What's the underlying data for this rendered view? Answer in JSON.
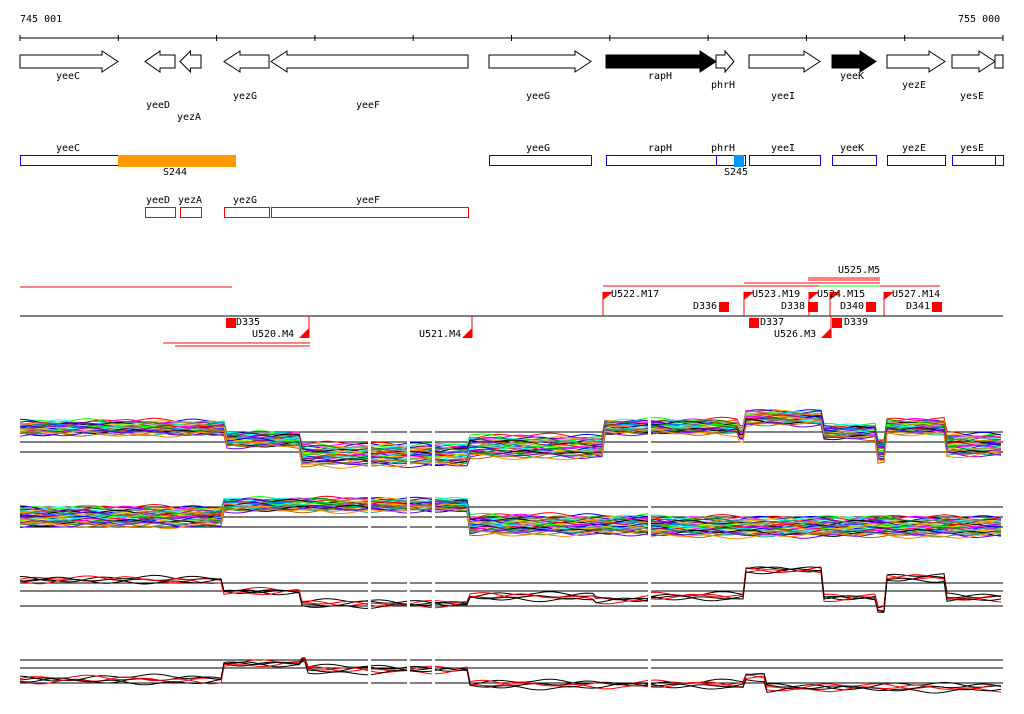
{
  "ruler": {
    "start": "745 001",
    "end": "755 000"
  },
  "genes": [
    {
      "name": "yeeC",
      "strand": "+"
    },
    {
      "name": "yeeD",
      "strand": "-"
    },
    {
      "name": "yezA",
      "strand": "-"
    },
    {
      "name": "yezG",
      "strand": "-"
    },
    {
      "name": "yeeF",
      "strand": "-"
    },
    {
      "name": "yeeG",
      "strand": "+"
    },
    {
      "name": "rapH",
      "strand": "+"
    },
    {
      "name": "phrH",
      "strand": "+"
    },
    {
      "name": "yeeI",
      "strand": "+"
    },
    {
      "name": "yeeK",
      "strand": "+"
    },
    {
      "name": "yezE",
      "strand": "+"
    },
    {
      "name": "yesE",
      "strand": "+"
    }
  ],
  "operons": {
    "labels": [
      "yeeC",
      "yeeG",
      "rapH",
      "phrH",
      "yeeI",
      "yeeK",
      "yezE",
      "yesE"
    ],
    "segments": [
      "S244",
      "S245"
    ],
    "segment_colors": {
      "S244": "#ff9900",
      "S245": "#0099ff"
    }
  },
  "red_operons": [
    "yeeD",
    "yezA",
    "yezG",
    "yeeF"
  ],
  "features_above": [
    "U522.M17",
    "D336",
    "U523.M19",
    "D338",
    "U524.M15",
    "U525.M5",
    "D340",
    "U527.M14",
    "D341"
  ],
  "features_below": [
    "D335",
    "U520.M4",
    "U521.M4",
    "D337",
    "U526.M3",
    "D339"
  ],
  "colors": {
    "gene_highlight": "#000000",
    "operon_border": "#0000ff",
    "feature": "#ff0000"
  }
}
